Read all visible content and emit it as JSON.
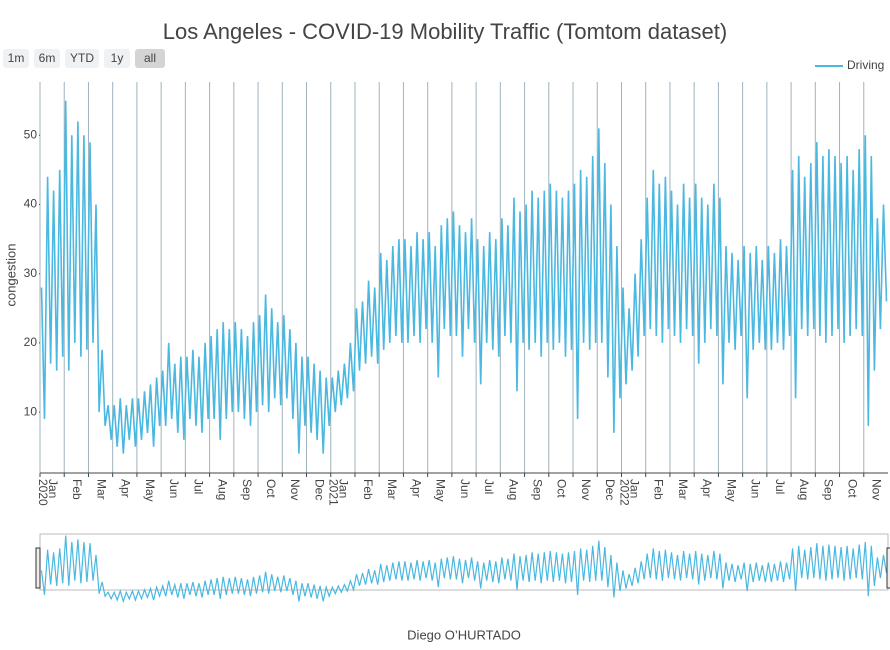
{
  "chart_data": {
    "type": "line",
    "title": "Los Angeles - COVID-19 Mobility Traffic (Tomtom dataset)",
    "ylabel": "congestion",
    "xlabel": "Diego O’HURTADO",
    "range_buttons": [
      "1m",
      "6m",
      "YTD",
      "1y",
      "all"
    ],
    "active_button": 4,
    "legend": "top-right",
    "grid": true,
    "range_slider": true,
    "xlim": [
      "2020-01",
      "2022-11"
    ],
    "ylim": [
      1.2,
      57.7
    ],
    "yticks": [
      10,
      20,
      30,
      40,
      50
    ],
    "xticks_year": [
      {
        "value": "2020-01",
        "label": "2020"
      },
      {
        "value": "2021-01",
        "label": "2021"
      },
      {
        "value": "2022-01",
        "label": "2022"
      }
    ],
    "xticks": [
      {
        "value": "2020-01",
        "label": "Jan"
      },
      {
        "value": "2020-02",
        "label": "Feb"
      },
      {
        "value": "2020-03",
        "label": "Mar"
      },
      {
        "value": "2020-04",
        "label": "Apr"
      },
      {
        "value": "2020-05",
        "label": "May"
      },
      {
        "value": "2020-06",
        "label": "Jun"
      },
      {
        "value": "2020-07",
        "label": "Jul"
      },
      {
        "value": "2020-08",
        "label": "Aug"
      },
      {
        "value": "2020-09",
        "label": "Sep"
      },
      {
        "value": "2020-10",
        "label": "Oct"
      },
      {
        "value": "2020-11",
        "label": "Nov"
      },
      {
        "value": "2020-12",
        "label": "Dec"
      },
      {
        "value": "2021-01",
        "label": "Jan"
      },
      {
        "value": "2021-02",
        "label": "Feb"
      },
      {
        "value": "2021-03",
        "label": "Mar"
      },
      {
        "value": "2021-04",
        "label": "Apr"
      },
      {
        "value": "2021-05",
        "label": "May"
      },
      {
        "value": "2021-06",
        "label": "Jun"
      },
      {
        "value": "2021-07",
        "label": "Jul"
      },
      {
        "value": "2021-08",
        "label": "Aug"
      },
      {
        "value": "2021-09",
        "label": "Sep"
      },
      {
        "value": "2021-10",
        "label": "Oct"
      },
      {
        "value": "2021-11",
        "label": "Nov"
      },
      {
        "value": "2021-12",
        "label": "Dec"
      },
      {
        "value": "2022-01",
        "label": "Jan"
      },
      {
        "value": "2022-02",
        "label": "Feb"
      },
      {
        "value": "2022-03",
        "label": "Mar"
      },
      {
        "value": "2022-04",
        "label": "Apr"
      },
      {
        "value": "2022-05",
        "label": "May"
      },
      {
        "value": "2022-06",
        "label": "Jun"
      },
      {
        "value": "2022-07",
        "label": "Jul"
      },
      {
        "value": "2022-08",
        "label": "Aug"
      },
      {
        "value": "2022-09",
        "label": "Sep"
      },
      {
        "value": "2022-10",
        "label": "Oct"
      },
      {
        "value": "2022-11",
        "label": "Nov"
      }
    ],
    "x": [
      "2020-01",
      "2020-01",
      "2020-01",
      "2020-01",
      "2020-01",
      "2020-01",
      "2020-01",
      "2020-01",
      "2020-02",
      "2020-02",
      "2020-02",
      "2020-02",
      "2020-02",
      "2020-02",
      "2020-02",
      "2020-02",
      "2020-03",
      "2020-03",
      "2020-03",
      "2020-03",
      "2020-03",
      "2020-03",
      "2020-03",
      "2020-03",
      "2020-04",
      "2020-04",
      "2020-04",
      "2020-04",
      "2020-04",
      "2020-04",
      "2020-04",
      "2020-04",
      "2020-05",
      "2020-05",
      "2020-05",
      "2020-05",
      "2020-05",
      "2020-05",
      "2020-05",
      "2020-05",
      "2020-06",
      "2020-06",
      "2020-06",
      "2020-06",
      "2020-06",
      "2020-06",
      "2020-06",
      "2020-06",
      "2020-07",
      "2020-07",
      "2020-07",
      "2020-07",
      "2020-07",
      "2020-07",
      "2020-07",
      "2020-07",
      "2020-08",
      "2020-08",
      "2020-08",
      "2020-08",
      "2020-08",
      "2020-08",
      "2020-08",
      "2020-08",
      "2020-09",
      "2020-09",
      "2020-09",
      "2020-09",
      "2020-09",
      "2020-09",
      "2020-09",
      "2020-09",
      "2020-10",
      "2020-10",
      "2020-10",
      "2020-10",
      "2020-10",
      "2020-10",
      "2020-10",
      "2020-10",
      "2020-11",
      "2020-11",
      "2020-11",
      "2020-11",
      "2020-11",
      "2020-11",
      "2020-11",
      "2020-11",
      "2020-12",
      "2020-12",
      "2020-12",
      "2020-12",
      "2020-12",
      "2020-12",
      "2020-12",
      "2020-12",
      "2021-01",
      "2021-01",
      "2021-01",
      "2021-01",
      "2021-01",
      "2021-01",
      "2021-01",
      "2021-01",
      "2021-02",
      "2021-02",
      "2021-02",
      "2021-02",
      "2021-02",
      "2021-02",
      "2021-02",
      "2021-02",
      "2021-03",
      "2021-03",
      "2021-03",
      "2021-03",
      "2021-03",
      "2021-03",
      "2021-03",
      "2021-03",
      "2021-04",
      "2021-04",
      "2021-04",
      "2021-04",
      "2021-04",
      "2021-04",
      "2021-04",
      "2021-04",
      "2021-05",
      "2021-05",
      "2021-05",
      "2021-05",
      "2021-05",
      "2021-05",
      "2021-05",
      "2021-05",
      "2021-06",
      "2021-06",
      "2021-06",
      "2021-06",
      "2021-06",
      "2021-06",
      "2021-06",
      "2021-06",
      "2021-07",
      "2021-07",
      "2021-07",
      "2021-07",
      "2021-07",
      "2021-07",
      "2021-07",
      "2021-07",
      "2021-08",
      "2021-08",
      "2021-08",
      "2021-08",
      "2021-08",
      "2021-08",
      "2021-08",
      "2021-08",
      "2021-09",
      "2021-09",
      "2021-09",
      "2021-09",
      "2021-09",
      "2021-09",
      "2021-09",
      "2021-09",
      "2021-10",
      "2021-10",
      "2021-10",
      "2021-10",
      "2021-10",
      "2021-10",
      "2021-10",
      "2021-10",
      "2021-11",
      "2021-11",
      "2021-11",
      "2021-11",
      "2021-11",
      "2021-11",
      "2021-11",
      "2021-11",
      "2021-12",
      "2021-12",
      "2021-12",
      "2021-12",
      "2021-12",
      "2021-12",
      "2021-12",
      "2021-12",
      "2022-01",
      "2022-01",
      "2022-01",
      "2022-01",
      "2022-01",
      "2022-01",
      "2022-01",
      "2022-01",
      "2022-02",
      "2022-02",
      "2022-02",
      "2022-02",
      "2022-02",
      "2022-02",
      "2022-02",
      "2022-02",
      "2022-03",
      "2022-03",
      "2022-03",
      "2022-03",
      "2022-03",
      "2022-03",
      "2022-03",
      "2022-03",
      "2022-04",
      "2022-04",
      "2022-04",
      "2022-04",
      "2022-04",
      "2022-04",
      "2022-04",
      "2022-04",
      "2022-05",
      "2022-05",
      "2022-05",
      "2022-05",
      "2022-05",
      "2022-05",
      "2022-05",
      "2022-05",
      "2022-06",
      "2022-06",
      "2022-06",
      "2022-06",
      "2022-06",
      "2022-06",
      "2022-06",
      "2022-06",
      "2022-07",
      "2022-07",
      "2022-07",
      "2022-07",
      "2022-07",
      "2022-07",
      "2022-07",
      "2022-07",
      "2022-08",
      "2022-08",
      "2022-08",
      "2022-08",
      "2022-08",
      "2022-08",
      "2022-08",
      "2022-08",
      "2022-09",
      "2022-09",
      "2022-09",
      "2022-09",
      "2022-09",
      "2022-09",
      "2022-09",
      "2022-09",
      "2022-10",
      "2022-10",
      "2022-10",
      "2022-10",
      "2022-10",
      "2022-10",
      "2022-10",
      "2022-10",
      "2022-11",
      "2022-11",
      "2022-11",
      "2022-11",
      "2022-11",
      "2022-11",
      "2022-11",
      "2022-11"
    ],
    "series": [
      {
        "name": "Driving",
        "color": "#4ab8e0",
        "values": [
          28,
          9,
          44,
          17,
          42,
          16,
          45,
          18,
          55,
          16,
          50,
          20,
          52,
          18,
          50,
          19,
          49,
          20,
          40,
          10,
          19,
          8,
          11,
          6,
          11,
          5,
          12,
          4,
          11,
          6,
          12,
          5,
          12,
          6,
          13,
          7,
          14,
          5,
          15,
          8,
          16,
          8,
          20,
          9,
          17,
          7,
          18,
          6,
          18,
          9,
          19,
          8,
          18,
          7,
          20,
          9,
          21,
          9,
          22,
          6,
          23,
          9,
          22,
          10,
          23,
          10,
          22,
          9,
          21,
          8,
          23,
          10,
          24,
          11,
          27,
          10,
          25,
          12,
          23,
          11,
          24,
          12,
          22,
          9,
          20,
          4,
          18,
          8,
          18,
          7,
          17,
          6,
          16,
          4,
          15,
          8,
          15,
          10,
          16,
          11,
          17,
          12,
          20,
          13,
          25,
          16,
          26,
          17,
          29,
          18,
          28,
          17,
          33,
          19,
          32,
          20,
          34,
          21,
          35,
          20,
          35,
          20,
          34,
          21,
          36,
          20,
          35,
          22,
          36,
          20,
          34,
          15,
          37,
          22,
          38,
          21,
          39,
          21,
          37,
          18,
          36,
          22,
          38,
          20,
          35,
          14,
          34,
          20,
          36,
          19,
          35,
          18,
          38,
          21,
          37,
          20,
          41,
          13,
          39,
          20,
          40,
          19,
          42,
          20,
          41,
          18,
          42,
          20,
          43,
          19,
          42,
          20,
          41,
          18,
          42,
          19,
          43,
          9,
          45,
          20,
          44,
          19,
          47,
          20,
          51,
          20,
          46,
          15,
          40,
          7,
          34,
          12,
          28,
          14,
          25,
          16,
          30,
          18,
          35,
          21,
          41,
          22,
          45,
          21,
          43,
          20,
          44,
          22,
          42,
          21,
          40,
          20,
          43,
          22,
          41,
          21,
          43,
          17,
          41,
          20,
          40,
          22,
          43,
          21,
          41,
          14,
          34,
          20,
          33,
          19,
          32,
          21,
          34,
          12,
          33,
          19,
          34,
          20,
          32,
          19,
          34,
          19,
          33,
          20,
          35,
          19,
          34,
          21,
          45,
          12,
          47,
          22,
          44,
          21,
          46,
          22,
          49,
          21,
          47,
          20,
          48,
          21,
          47,
          22,
          46,
          20,
          47,
          21,
          45,
          22,
          48,
          21,
          50,
          8,
          47,
          16,
          38,
          22,
          40,
          26
        ]
      }
    ]
  }
}
